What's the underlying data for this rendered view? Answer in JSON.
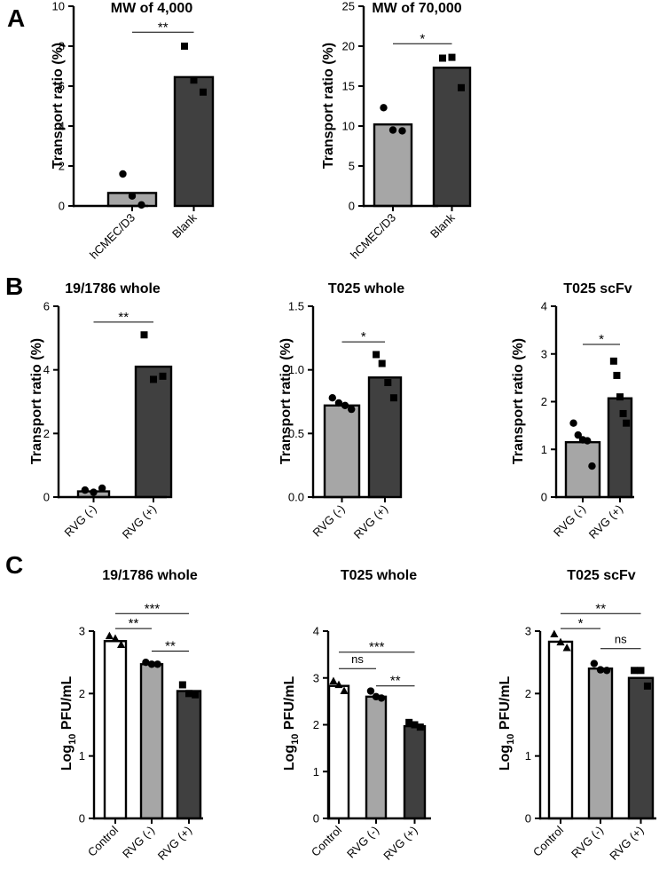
{
  "colors": {
    "light_bar": "#a6a6a6",
    "dark_bar": "#404040",
    "white_bar": "#ffffff",
    "stroke": "#000000"
  },
  "chart_data": [
    {
      "type": "bar",
      "panel": "A",
      "title": "MW of 4,000",
      "ylabel": "Transport ratio (%)",
      "ylim": [
        0,
        10
      ],
      "yticks": [
        "0",
        "2",
        "4",
        "6",
        "8",
        "10"
      ],
      "categories": [
        "hCMEC/D3",
        "Blank"
      ],
      "bar_colors": [
        "light",
        "dark"
      ],
      "values": [
        0.65,
        6.45
      ],
      "points": [
        [
          1.6,
          0.5,
          0.05
        ],
        [
          8.0,
          6.3,
          5.7
        ]
      ],
      "marker": [
        "circle",
        "square"
      ],
      "comparisons": [
        {
          "from": 0,
          "to": 1,
          "label": "**",
          "y": 8.7
        }
      ]
    },
    {
      "type": "bar",
      "panel": "A",
      "title": "MW of 70,000",
      "ylabel": "Transport ratio (%)",
      "ylim": [
        0,
        25
      ],
      "yticks": [
        "0",
        "5",
        "10",
        "15",
        "20",
        "25"
      ],
      "categories": [
        "hCMEC/D3",
        "Blank"
      ],
      "bar_colors": [
        "light",
        "dark"
      ],
      "values": [
        10.2,
        17.3
      ],
      "points": [
        [
          12.3,
          9.5,
          9.4
        ],
        [
          18.5,
          18.6,
          14.8
        ]
      ],
      "marker": [
        "circle",
        "square"
      ],
      "comparisons": [
        {
          "from": 0,
          "to": 1,
          "label": "*",
          "y": 20.3
        }
      ]
    },
    {
      "type": "bar",
      "panel": "B",
      "title": "19/1786 whole",
      "ylabel": "Transport ratio (%)",
      "ylim": [
        0,
        6
      ],
      "yticks": [
        "0",
        "2",
        "4",
        "6"
      ],
      "categories": [
        "RVG (-)",
        "RVG (+)"
      ],
      "bar_colors": [
        "light",
        "dark"
      ],
      "values": [
        0.18,
        4.1
      ],
      "points": [
        [
          0.22,
          0.15,
          0.28
        ],
        [
          5.1,
          3.7,
          3.8
        ]
      ],
      "marker": [
        "circle",
        "square"
      ],
      "comparisons": [
        {
          "from": 0,
          "to": 1,
          "label": "**",
          "y": 5.5
        }
      ]
    },
    {
      "type": "bar",
      "panel": "B",
      "title": "T025 whole",
      "ylabel": "Transport ratio (%)",
      "ylim": [
        0,
        1.5
      ],
      "yticks": [
        "0.0",
        "0.5",
        "1.0",
        "1.5"
      ],
      "categories": [
        "RVG (-)",
        "RVG (+)"
      ],
      "bar_colors": [
        "light",
        "dark"
      ],
      "values": [
        0.72,
        0.94
      ],
      "points": [
        [
          0.78,
          0.74,
          0.72,
          0.69
        ],
        [
          1.12,
          1.05,
          0.9,
          0.78
        ]
      ],
      "marker": [
        "circle",
        "square"
      ],
      "comparisons": [
        {
          "from": 0,
          "to": 1,
          "label": "*",
          "y": 1.22
        }
      ]
    },
    {
      "type": "bar",
      "panel": "B",
      "title": "T025 scFv",
      "ylabel": "Transport ratio (%)",
      "ylim": [
        0,
        4
      ],
      "yticks": [
        "0",
        "1",
        "2",
        "3",
        "4"
      ],
      "categories": [
        "RVG (-)",
        "RVG (+)"
      ],
      "bar_colors": [
        "light",
        "dark"
      ],
      "values": [
        1.15,
        2.07
      ],
      "points": [
        [
          1.55,
          1.3,
          1.2,
          1.18,
          0.65
        ],
        [
          2.85,
          2.55,
          2.1,
          1.75,
          1.55
        ]
      ],
      "marker": [
        "circle",
        "square"
      ],
      "comparisons": [
        {
          "from": 0,
          "to": 1,
          "label": "*",
          "y": 3.2
        }
      ]
    },
    {
      "type": "bar",
      "panel": "C",
      "title": "19/1786 whole",
      "ylabel": "Log",
      "ylabel_sub": "10",
      "ylabel_unit": " PFU/mL",
      "ylim": [
        0,
        3
      ],
      "yticks": [
        "0",
        "1",
        "2",
        "3"
      ],
      "categories": [
        "Control",
        "RVG (-)",
        "RVG (+)"
      ],
      "bar_colors": [
        "white",
        "light",
        "dark"
      ],
      "values": [
        2.84,
        2.47,
        2.04
      ],
      "points": [
        [
          2.92,
          2.88,
          2.78
        ],
        [
          2.5,
          2.47,
          2.47
        ],
        [
          2.14,
          2.0,
          1.98
        ]
      ],
      "marker": [
        "triangle",
        "circle",
        "square"
      ],
      "comparisons": [
        {
          "from": 0,
          "to": 2,
          "label": "***",
          "y": 3.28
        },
        {
          "from": 0,
          "to": 1,
          "label": "**",
          "y": 3.04
        },
        {
          "from": 1,
          "to": 2,
          "label": "**",
          "y": 2.68
        }
      ]
    },
    {
      "type": "bar",
      "panel": "C",
      "title": "T025 whole",
      "ylabel": "Log",
      "ylabel_sub": "10",
      "ylabel_unit": " PFU/mL",
      "ylim": [
        0,
        4
      ],
      "yticks": [
        "0",
        "1",
        "2",
        "3",
        "4"
      ],
      "categories": [
        "Control",
        "RVG (-)",
        "RVG (+)"
      ],
      "bar_colors": [
        "white",
        "light",
        "dark"
      ],
      "values": [
        2.83,
        2.6,
        1.97
      ],
      "points": [
        [
          2.93,
          2.85,
          2.72
        ],
        [
          2.72,
          2.6,
          2.57
        ],
        [
          2.05,
          2.0,
          1.95
        ]
      ],
      "marker": [
        "triangle",
        "circle",
        "square"
      ],
      "comparisons": [
        {
          "from": 0,
          "to": 2,
          "label": "***",
          "y": 3.55
        },
        {
          "from": 0,
          "to": 1,
          "label": "ns",
          "y": 3.2
        },
        {
          "from": 1,
          "to": 2,
          "label": "**",
          "y": 2.83
        }
      ]
    },
    {
      "type": "bar",
      "panel": "C",
      "title": "T025 scFv",
      "ylabel": "Log",
      "ylabel_sub": "10",
      "ylabel_unit": " PFU/mL",
      "ylim": [
        0,
        3
      ],
      "yticks": [
        "0",
        "1",
        "2",
        "3"
      ],
      "categories": [
        "Control",
        "RVG (-)",
        "RVG (+)"
      ],
      "bar_colors": [
        "white",
        "light",
        "dark"
      ],
      "values": [
        2.83,
        2.4,
        2.25
      ],
      "points": [
        [
          2.95,
          2.82,
          2.73
        ],
        [
          2.48,
          2.38,
          2.37
        ],
        [
          2.37,
          2.37,
          2.12
        ]
      ],
      "marker": [
        "triangle",
        "circle",
        "square"
      ],
      "comparisons": [
        {
          "from": 0,
          "to": 2,
          "label": "**",
          "y": 3.28
        },
        {
          "from": 0,
          "to": 1,
          "label": "*",
          "y": 3.04
        },
        {
          "from": 1,
          "to": 2,
          "label": "ns",
          "y": 2.72
        }
      ]
    }
  ],
  "panels": [
    {
      "letter": "A"
    },
    {
      "letter": "B"
    },
    {
      "letter": "C"
    }
  ]
}
